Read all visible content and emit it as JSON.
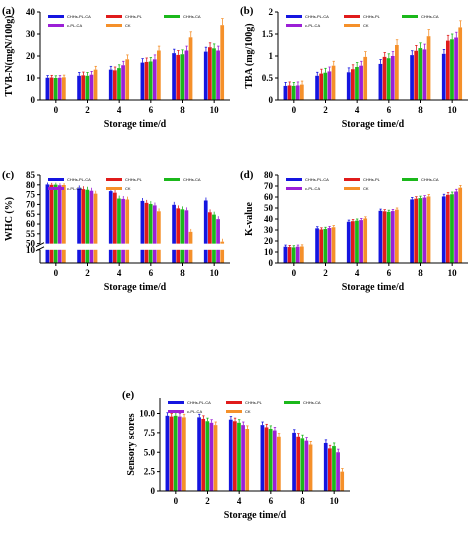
{
  "colors": {
    "CHHs-PL-CA": "#1515e0",
    "CHHs-PL": "#e01b1b",
    "CHHs-CA": "#1bb81b",
    "c-PL-CA": "#9b1fd6",
    "CK": "#f5902a"
  },
  "panels": [
    {
      "panel_label": "(a)",
      "ylabel": "TVB-N(mgN/100g)",
      "xlabel": "Storage time/d",
      "legend_labels": [
        "CHHs-PL-CA",
        "CHHs-PL",
        "CHHs-CA",
        "c-PL-CA",
        "CK"
      ]
    },
    {
      "panel_label": "(b)",
      "ylabel": "TBA (mg/100g)",
      "xlabel": "Storage time/d",
      "legend_labels": [
        "CHHs-PL-CA",
        "CHHs-PL",
        "CHHs-CA",
        "c-PL-CA",
        "CK"
      ]
    },
    {
      "panel_label": "(c)",
      "ylabel": "WHC (%)",
      "xlabel": "Storage time/d",
      "legend_labels": [
        "CHHs-PL-CA",
        "CHHs-PL",
        "CHHs-CA",
        "c-PL-CA",
        "CK"
      ]
    },
    {
      "panel_label": "(d)",
      "ylabel": "K-value",
      "xlabel": "Storage time/d",
      "legend_labels": [
        "CHHs-PL-CA",
        "CHHs-PL",
        "CHHs-CA",
        "c-PL-CA",
        "CK"
      ]
    },
    {
      "panel_label": "(e)",
      "ylabel": "Sensory scores",
      "xlabel": "Storage time/d",
      "legend_labels": [
        "CHHs-PL-CA",
        "CHHs-PL",
        "CHHs-CA",
        "c-PL-CA",
        "CK"
      ]
    }
  ],
  "chart_data": [
    {
      "type": "bar",
      "categories": [
        "0",
        "2",
        "4",
        "6",
        "8",
        "10"
      ],
      "ylim": [
        0,
        40
      ],
      "yticks": [
        0,
        10,
        20,
        30,
        40
      ],
      "series": [
        {
          "name": "CHHs-PL-CA",
          "values": [
            10.1,
            11.0,
            13.8,
            17.0,
            21.3,
            22.0
          ],
          "errors": [
            1.0,
            1.5,
            1.5,
            1.8,
            1.8,
            2.0
          ]
        },
        {
          "name": "CHHs-PL",
          "values": [
            10.2,
            11.2,
            13.5,
            17.3,
            20.5,
            24.0
          ],
          "errors": [
            1.0,
            1.5,
            1.5,
            1.8,
            2.0,
            2.0
          ]
        },
        {
          "name": "CHHs-CA",
          "values": [
            10.0,
            11.0,
            14.5,
            17.5,
            20.8,
            23.5
          ],
          "errors": [
            1.0,
            1.5,
            1.5,
            1.8,
            2.0,
            2.0
          ]
        },
        {
          "name": "c-PL-CA",
          "values": [
            10.1,
            11.5,
            15.8,
            18.5,
            22.5,
            22.5
          ],
          "errors": [
            1.0,
            1.5,
            1.8,
            2.0,
            2.0,
            2.0
          ]
        },
        {
          "name": "CK",
          "values": [
            10.3,
            13.8,
            18.5,
            22.5,
            28.5,
            34.0
          ],
          "errors": [
            1.0,
            1.5,
            2.0,
            2.0,
            2.5,
            3.0
          ]
        }
      ]
    },
    {
      "type": "bar",
      "categories": [
        "0",
        "2",
        "4",
        "6",
        "8",
        "10"
      ],
      "ylim": [
        0,
        2.0
      ],
      "yticks": [
        0,
        0.5,
        1.0,
        1.5,
        2.0
      ],
      "series": [
        {
          "name": "CHHs-PL-CA",
          "values": [
            0.32,
            0.55,
            0.63,
            0.82,
            1.02,
            1.05
          ],
          "errors": [
            0.08,
            0.08,
            0.1,
            0.1,
            0.1,
            0.1
          ]
        },
        {
          "name": "CHHs-PL",
          "values": [
            0.33,
            0.6,
            0.7,
            0.98,
            1.12,
            1.35
          ],
          "errors": [
            0.08,
            0.1,
            0.1,
            0.1,
            0.12,
            0.12
          ]
        },
        {
          "name": "CHHs-CA",
          "values": [
            0.32,
            0.62,
            0.75,
            0.95,
            1.18,
            1.38
          ],
          "errors": [
            0.08,
            0.1,
            0.1,
            0.1,
            0.12,
            0.12
          ]
        },
        {
          "name": "c-PL-CA",
          "values": [
            0.33,
            0.65,
            0.78,
            1.0,
            1.15,
            1.42
          ],
          "errors": [
            0.08,
            0.1,
            0.1,
            0.1,
            0.12,
            0.12
          ]
        },
        {
          "name": "CK",
          "values": [
            0.35,
            0.78,
            0.98,
            1.25,
            1.45,
            1.65
          ],
          "errors": [
            0.08,
            0.1,
            0.12,
            0.12,
            0.15,
            0.15
          ]
        }
      ]
    },
    {
      "type": "bar",
      "categories": [
        "0",
        "2",
        "4",
        "6",
        "8",
        "10"
      ],
      "ylim": [
        0,
        85
      ],
      "yticks_upper": [
        50,
        55,
        60,
        65,
        70,
        75,
        80,
        85
      ],
      "yticks_lower": [
        0,
        5,
        10
      ],
      "axis_break": [
        10,
        50
      ],
      "series": [
        {
          "name": "CHHs-PL-CA",
          "values": [
            80.2,
            78.2,
            76.8,
            71.8,
            69.8,
            72.0
          ],
          "errors": [
            1.0,
            1.5,
            1.5,
            1.5,
            1.5,
            1.5
          ]
        },
        {
          "name": "CHHs-PL",
          "values": [
            80.0,
            77.8,
            76.0,
            70.8,
            68.0,
            66.0
          ],
          "errors": [
            1.0,
            1.5,
            1.5,
            1.5,
            1.5,
            1.5
          ]
        },
        {
          "name": "CHHs-CA",
          "values": [
            80.1,
            77.5,
            73.0,
            70.2,
            67.5,
            64.8
          ],
          "errors": [
            1.0,
            1.5,
            1.5,
            1.5,
            1.5,
            1.5
          ]
        },
        {
          "name": "c-PL-CA",
          "values": [
            79.8,
            77.0,
            72.8,
            69.5,
            67.0,
            62.5
          ],
          "errors": [
            1.0,
            1.5,
            1.5,
            1.5,
            1.5,
            1.5
          ]
        },
        {
          "name": "CK",
          "values": [
            79.9,
            75.5,
            72.5,
            66.5,
            56.0,
            51.0
          ],
          "errors": [
            1.0,
            1.5,
            1.5,
            1.5,
            1.5,
            1.5
          ]
        }
      ]
    },
    {
      "type": "bar",
      "categories": [
        "0",
        "2",
        "4",
        "6",
        "8",
        "10"
      ],
      "ylim": [
        0,
        80
      ],
      "yticks": [
        0,
        10,
        20,
        30,
        40,
        50,
        60,
        70,
        80
      ],
      "series": [
        {
          "name": "CHHs-PL-CA",
          "values": [
            14.8,
            31.5,
            37.5,
            47.5,
            57.8,
            60.5
          ],
          "errors": [
            1.5,
            1.5,
            1.5,
            1.5,
            1.8,
            2.0
          ]
        },
        {
          "name": "CHHs-PL",
          "values": [
            14.5,
            30.5,
            38.0,
            47.0,
            58.5,
            62.0
          ],
          "errors": [
            1.5,
            1.5,
            1.5,
            1.5,
            1.8,
            2.0
          ]
        },
        {
          "name": "CHHs-CA",
          "values": [
            14.2,
            31.0,
            38.5,
            46.5,
            59.0,
            62.5
          ],
          "errors": [
            1.5,
            1.5,
            1.5,
            1.5,
            1.8,
            2.0
          ]
        },
        {
          "name": "c-PL-CA",
          "values": [
            14.8,
            31.8,
            39.0,
            47.2,
            59.5,
            65.0
          ],
          "errors": [
            1.5,
            1.5,
            1.5,
            1.5,
            1.8,
            2.0
          ]
        },
        {
          "name": "CK",
          "values": [
            15.0,
            32.5,
            40.5,
            48.5,
            60.5,
            68.5
          ],
          "errors": [
            1.5,
            1.5,
            1.5,
            1.5,
            1.8,
            2.0
          ]
        }
      ]
    },
    {
      "type": "bar",
      "categories": [
        "0",
        "2",
        "4",
        "6",
        "8",
        "10"
      ],
      "ylim": [
        0,
        12
      ],
      "yticks": [
        0,
        2.5,
        5.0,
        7.5,
        10.0
      ],
      "ytick_labels": [
        "0",
        "2.5",
        "5.0",
        "7.5",
        "10.0"
      ],
      "series": [
        {
          "name": "CHHs-PL-CA",
          "values": [
            9.7,
            9.5,
            9.2,
            8.5,
            7.5,
            6.2
          ],
          "errors": [
            0.4,
            0.4,
            0.4,
            0.4,
            0.4,
            0.4
          ]
        },
        {
          "name": "CHHs-PL",
          "values": [
            9.6,
            9.3,
            9.0,
            8.2,
            7.0,
            5.5
          ],
          "errors": [
            0.4,
            0.4,
            0.4,
            0.4,
            0.4,
            0.4
          ]
        },
        {
          "name": "CHHs-CA",
          "values": [
            9.7,
            9.0,
            8.8,
            8.0,
            6.8,
            5.8
          ],
          "errors": [
            0.4,
            0.4,
            0.4,
            0.4,
            0.4,
            0.4
          ]
        },
        {
          "name": "c-PL-CA",
          "values": [
            9.6,
            8.8,
            8.5,
            7.8,
            6.5,
            5.0
          ],
          "errors": [
            0.4,
            0.4,
            0.4,
            0.4,
            0.4,
            0.4
          ]
        },
        {
          "name": "CK",
          "values": [
            9.5,
            8.5,
            8.0,
            7.0,
            6.0,
            2.5
          ],
          "errors": [
            0.4,
            0.4,
            0.4,
            0.4,
            0.4,
            0.4
          ]
        }
      ]
    }
  ]
}
